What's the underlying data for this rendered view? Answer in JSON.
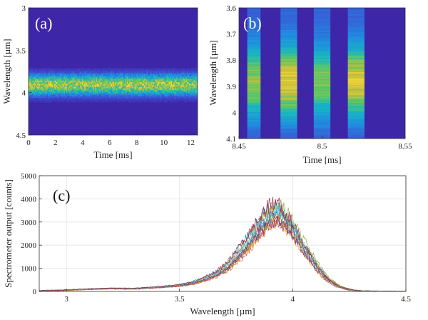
{
  "chart_data": [
    {
      "type": "heatmap",
      "panel_label": "(a)",
      "xlabel": "Time [ms]",
      "ylabel": "Wavelength [µm]",
      "xlim": [
        0,
        12.5
      ],
      "ylim": [
        3.0,
        4.5
      ],
      "y_reversed": true,
      "xticks": [
        0,
        2,
        4,
        6,
        8,
        10,
        12
      ],
      "yticks": [
        3,
        3.5,
        4,
        4.5
      ],
      "ytick_labels": [
        "3",
        "3.5",
        "4",
        "4.5"
      ],
      "emission_band": {
        "center": 3.9,
        "low": 3.7,
        "high": 4.1
      },
      "colormap": [
        "#3e26a8",
        "#3f4ed3",
        "#1f8ee0",
        "#17b5c4",
        "#5cc863",
        "#c4c03a",
        "#f4d836"
      ]
    },
    {
      "type": "heatmap",
      "panel_label": "(b)",
      "xlabel": "Time [ms]",
      "ylabel": "Wavelength [µm]",
      "xlim": [
        8.45,
        8.55
      ],
      "ylim": [
        3.6,
        4.1
      ],
      "y_reversed": true,
      "xticks": [
        8.45,
        8.5,
        8.55
      ],
      "xtick_labels": [
        "8.45",
        "8.5",
        "8.55"
      ],
      "yticks": [
        3.6,
        3.7,
        3.8,
        3.9,
        4.0,
        4.1
      ],
      "ytick_labels": [
        "3.6",
        "3.7",
        "3.8",
        "3.9",
        "4",
        "4.1"
      ],
      "pulses": [
        {
          "start": 8.455,
          "end": 8.463,
          "peak": 0.72
        },
        {
          "start": 8.475,
          "end": 8.485,
          "peak": 0.95
        },
        {
          "start": 8.495,
          "end": 8.505,
          "peak": 0.68
        },
        {
          "start": 8.5155,
          "end": 8.5255,
          "peak": 0.93
        }
      ]
    },
    {
      "type": "line",
      "panel_label": "(c)",
      "xlabel": "Wavelength [µm]",
      "ylabel": "Spectrometer output [counts]",
      "xlim": [
        2.88,
        4.5
      ],
      "ylim": [
        0,
        5000
      ],
      "xticks": [
        3,
        3.5,
        4,
        4.5
      ],
      "xtick_labels": [
        "3",
        "3.5",
        "4",
        "4.5"
      ],
      "yticks": [
        0,
        1000,
        2000,
        3000,
        4000,
        5000
      ],
      "grid": true,
      "series_count": 14,
      "spectrum_envelope": {
        "x": [
          2.88,
          3.0,
          3.1,
          3.2,
          3.3,
          3.4,
          3.5,
          3.55,
          3.6,
          3.65,
          3.7,
          3.75,
          3.8,
          3.85,
          3.9,
          3.93,
          3.95,
          4.0,
          4.05,
          4.1,
          4.15,
          4.2,
          4.25,
          4.3,
          4.4,
          4.5
        ],
        "y": [
          30,
          60,
          100,
          130,
          120,
          180,
          260,
          350,
          500,
          700,
          1000,
          1500,
          2100,
          2800,
          3350,
          3450,
          3300,
          2700,
          1900,
          1150,
          550,
          220,
          80,
          20,
          5,
          0
        ]
      },
      "series_colors": [
        "#0072bd",
        "#d95319",
        "#edb120",
        "#7e2f8e",
        "#77ac30",
        "#4dbeee",
        "#a2142f",
        "#0072bd",
        "#d95319",
        "#edb120",
        "#7e2f8e",
        "#77ac30",
        "#4dbeee",
        "#a2142f"
      ]
    }
  ]
}
